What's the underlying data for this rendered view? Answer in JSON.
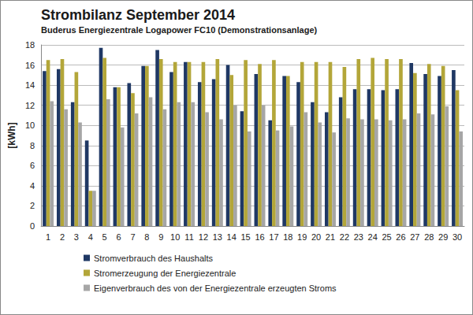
{
  "chart_data": {
    "type": "bar",
    "title": "Strombilanz September 2014",
    "subtitle": "Buderus Energiezentrale Logapower FC10 (Demonstrationsanlage)",
    "y_label": "[kWh]",
    "categories": [
      "1",
      "2",
      "3",
      "4",
      "5",
      "6",
      "7",
      "8",
      "9",
      "10",
      "11",
      "12",
      "13",
      "14",
      "15",
      "16",
      "17",
      "18",
      "19",
      "20",
      "21",
      "22",
      "23",
      "24",
      "25",
      "26",
      "27",
      "28",
      "29",
      "30"
    ],
    "series": [
      {
        "name": "Stromverbrauch des Haushalts",
        "color": "#1f3864",
        "values": [
          15.4,
          15.6,
          12.3,
          8.5,
          17.7,
          13.8,
          14.2,
          15.9,
          17.5,
          15.3,
          16.3,
          14.3,
          14.6,
          16.0,
          11.4,
          15.1,
          10.5,
          14.9,
          14.3,
          12.3,
          11.3,
          12.8,
          13.6,
          13.6,
          13.5,
          13.6,
          16.2,
          15.1,
          14.9,
          15.5
        ]
      },
      {
        "name": "Stromerzeugung der Energiezentrale",
        "color": "#b3a639",
        "values": [
          16.5,
          16.6,
          15.3,
          3.5,
          16.7,
          13.8,
          13.2,
          15.9,
          16.6,
          16.3,
          16.3,
          16.3,
          16.6,
          15.0,
          16.5,
          16.1,
          16.5,
          14.9,
          16.3,
          16.3,
          16.3,
          15.8,
          16.6,
          16.7,
          16.6,
          16.6,
          15.2,
          16.1,
          15.9,
          13.5
        ]
      },
      {
        "name": "Eigenverbrauch des von der Energiezentrale erzeugten Stroms",
        "color": "#a6a6a6",
        "values": [
          12.4,
          11.6,
          10.3,
          3.5,
          12.6,
          9.8,
          11.2,
          12.8,
          11.6,
          12.3,
          12.3,
          11.3,
          10.6,
          12.0,
          9.4,
          12.0,
          9.5,
          9.9,
          11.3,
          10.3,
          9.3,
          10.7,
          10.6,
          10.6,
          10.5,
          10.6,
          11.2,
          11.1,
          11.9,
          9.4
        ]
      }
    ],
    "ylim": [
      0,
      18
    ],
    "yticks": [
      0,
      2,
      4,
      6,
      8,
      10,
      12,
      14,
      16,
      18
    ],
    "grid": true,
    "legend": "bottom"
  }
}
